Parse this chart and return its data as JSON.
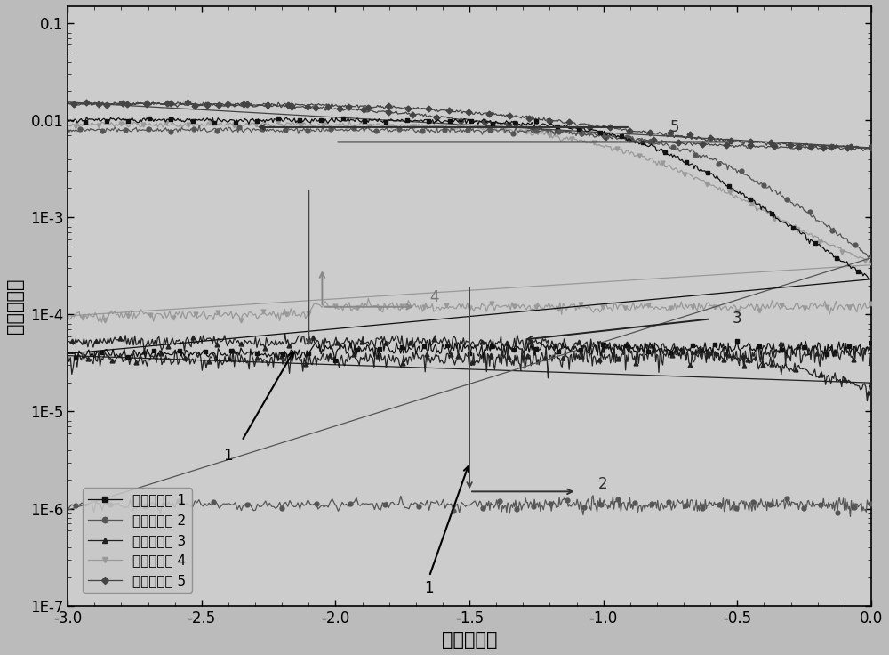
{
  "xlabel": "电压（伏）",
  "ylabel": "电流（安）",
  "xlim": [
    -3.0,
    0.0
  ],
  "ylim_log": [
    1e-07,
    0.15
  ],
  "yticks": [
    1e-07,
    1e-06,
    1e-05,
    0.0001,
    0.001,
    0.01,
    0.1
  ],
  "ytick_labels": [
    "1E-7",
    "1E-6",
    "1E-5",
    "1E-4",
    "1E-3",
    "0.01",
    "0.1"
  ],
  "xticks": [
    -3.0,
    -2.5,
    -2.0,
    -1.5,
    -1.0,
    -0.5,
    0.0
  ],
  "legend_labels": [
    "第一次扫描 1",
    "第二次扫描 2",
    "第三次扫描 3",
    "第四次扫描 4",
    "第五次扫描 5"
  ],
  "colors": [
    "#111111",
    "#555555",
    "#222222",
    "#999999",
    "#444444"
  ],
  "background_color": "#cccccc",
  "fig_background": "#bbbbbb",
  "font_size_labels": 15,
  "font_size_ticks": 12,
  "font_size_legend": 11
}
